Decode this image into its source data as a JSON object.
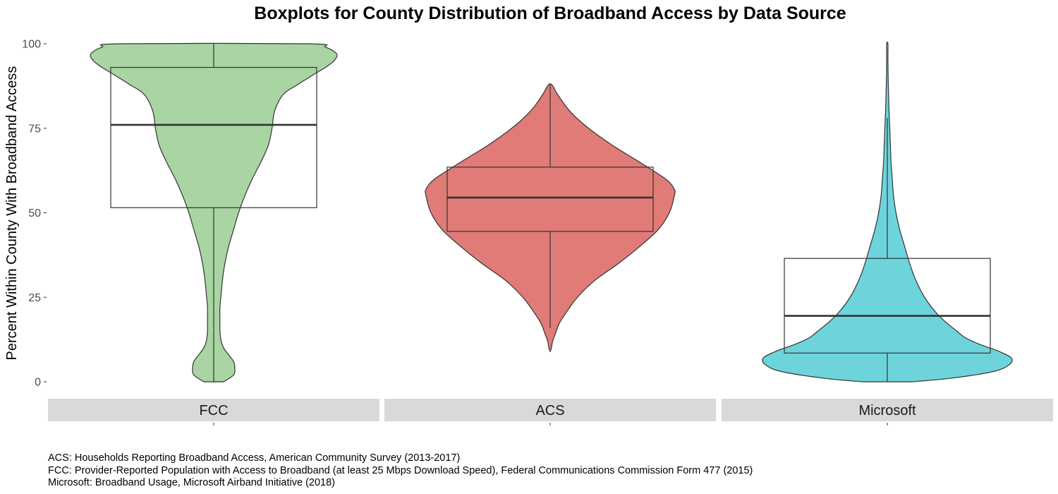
{
  "chart_data": {
    "type": "violin",
    "title": "Boxplots for County Distribution of Broadband Access by Data Source",
    "ylabel": "Percent Within County With Broadband Access",
    "xlabel": "",
    "ylim": [
      0,
      100
    ],
    "yticks": [
      0,
      25,
      50,
      75,
      100
    ],
    "grid": false,
    "legend": "none",
    "facets": [
      {
        "name": "FCC",
        "color": "#a8d5a2",
        "box": {
          "whisker_low": 0,
          "q1": 51.5,
          "median": 76,
          "q3": 93,
          "whisker_high": 100
        },
        "violin": {
          "y": [
            0,
            2,
            4,
            6,
            8,
            10,
            12,
            15,
            18,
            22,
            26,
            30,
            35,
            40,
            45,
            50,
            55,
            60,
            65,
            70,
            75,
            80,
            85,
            88,
            91,
            93,
            95,
            97,
            99,
            100
          ],
          "width": [
            0.08,
            0.16,
            0.17,
            0.16,
            0.12,
            0.08,
            0.06,
            0.05,
            0.05,
            0.05,
            0.06,
            0.07,
            0.09,
            0.12,
            0.16,
            0.2,
            0.25,
            0.31,
            0.38,
            0.44,
            0.47,
            0.49,
            0.56,
            0.68,
            0.81,
            0.9,
            0.97,
            0.99,
            0.9,
            0.75
          ]
        }
      },
      {
        "name": "ACS",
        "color": "#e07b78",
        "box": {
          "whisker_low": 16,
          "q1": 44.5,
          "median": 54.5,
          "q3": 63.5,
          "whisker_high": 88
        },
        "violin": {
          "y": [
            9,
            10,
            12,
            14,
            17,
            20,
            25,
            30,
            35,
            40,
            45,
            50,
            55,
            57,
            60,
            65,
            70,
            75,
            80,
            85,
            87,
            88
          ],
          "width": [
            0.0,
            0.01,
            0.02,
            0.04,
            0.07,
            0.12,
            0.22,
            0.36,
            0.55,
            0.72,
            0.87,
            0.96,
            1.0,
            1.0,
            0.93,
            0.72,
            0.5,
            0.31,
            0.16,
            0.06,
            0.03,
            0.01
          ]
        }
      },
      {
        "name": "Microsoft",
        "color": "#6dd4dc",
        "box": {
          "whisker_low": 0,
          "q1": 8.5,
          "median": 19.5,
          "q3": 36.5,
          "whisker_high": 78
        },
        "violin": {
          "y": [
            0,
            1,
            3,
            5,
            7,
            9,
            11,
            13,
            15,
            18,
            21,
            25,
            30,
            35,
            40,
            45,
            50,
            55,
            60,
            65,
            70,
            75,
            80,
            85,
            88,
            92,
            96,
            100
          ],
          "width": [
            0.2,
            0.5,
            0.85,
            0.98,
            1.0,
            0.9,
            0.75,
            0.63,
            0.56,
            0.46,
            0.38,
            0.3,
            0.23,
            0.18,
            0.14,
            0.1,
            0.07,
            0.05,
            0.04,
            0.03,
            0.025,
            0.02,
            0.014,
            0.01,
            0.008,
            0.006,
            0.005,
            0.005
          ]
        }
      }
    ]
  },
  "caption": {
    "lines": [
      "ACS: Households Reporting Broadband Access, American Community Survey (2013-2017)",
      "FCC: Provider-Reported Population with Access to Broadband (at least 25 Mbps Download Speed), Federal Communications Commission Form 477 (2015)",
      "Microsoft: Broadband Usage,  Microsoft Airband Initiative (2018)"
    ]
  },
  "colors": {
    "strip_background": "#d9d9d9",
    "outline": "#333333"
  }
}
